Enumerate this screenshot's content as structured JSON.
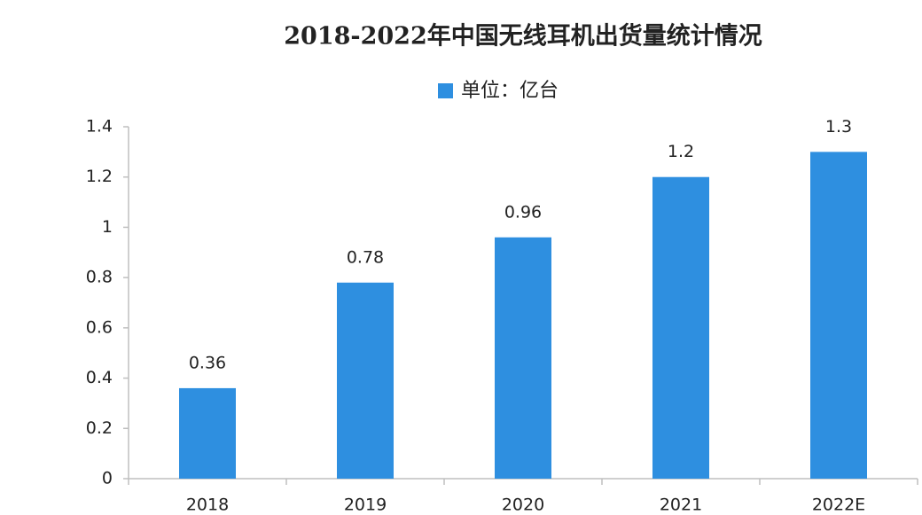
{
  "chart_data": {
    "type": "bar",
    "title": "2018-2022年中国无线耳机出货量统计情况",
    "categories": [
      "2018",
      "2019",
      "2020",
      "2021",
      "2022E"
    ],
    "series": [
      {
        "name": "单位：亿台",
        "color": "#2e8fe0",
        "values": [
          0.36,
          0.78,
          0.96,
          1.2,
          1.3
        ]
      }
    ],
    "ylim": [
      0,
      1.4
    ],
    "yticks": [
      0,
      0.2,
      0.4,
      0.6,
      0.8,
      1,
      1.2,
      1.4
    ],
    "grid": false
  }
}
